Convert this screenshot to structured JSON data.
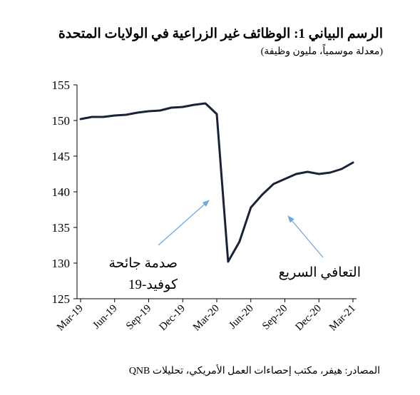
{
  "title": "الرسم البياني 1: الوظائف غير الزراعية في الولايات المتحدة",
  "subtitle": "(معدلة موسمياً، مليون وظيفة)",
  "source": "المصادر: هيفر، مكتب إحصاءات العمل الأمريكي، تحليلات QNB",
  "chart_data": {
    "type": "line",
    "ylim": [
      125,
      155
    ],
    "yticks": [
      125,
      130,
      135,
      140,
      145,
      150,
      155
    ],
    "xtick_labels": [
      "Mar-19",
      "Jun-19",
      "Sep-19",
      "Dec-19",
      "Mar-20",
      "Jun-20",
      "Sep-20",
      "Dec-20",
      "Mar-21"
    ],
    "x": [
      "Mar-19",
      "Apr-19",
      "May-19",
      "Jun-19",
      "Jul-19",
      "Aug-19",
      "Sep-19",
      "Oct-19",
      "Nov-19",
      "Dec-19",
      "Jan-20",
      "Feb-20",
      "Mar-20",
      "Apr-20",
      "May-20",
      "Jun-20",
      "Jul-20",
      "Aug-20",
      "Sep-20",
      "Oct-20",
      "Nov-20",
      "Dec-20",
      "Jan-21",
      "Feb-21",
      "Mar-21"
    ],
    "values": [
      150.2,
      150.5,
      150.5,
      150.7,
      150.8,
      151.1,
      151.3,
      151.4,
      151.8,
      151.9,
      152.2,
      152.4,
      150.9,
      130.2,
      133.0,
      137.8,
      139.6,
      141.1,
      141.8,
      142.5,
      142.8,
      142.5,
      142.7,
      143.2,
      144.1
    ],
    "grid": false,
    "line_color": "#1a2336",
    "annotations": [
      {
        "text_lines": [
          "صدمة جائحة",
          "كوفيد-19"
        ],
        "arrow_color": "#6fa8dc"
      },
      {
        "text_lines": [
          "التعافي السريع"
        ],
        "arrow_color": "#6fa8dc"
      }
    ]
  }
}
